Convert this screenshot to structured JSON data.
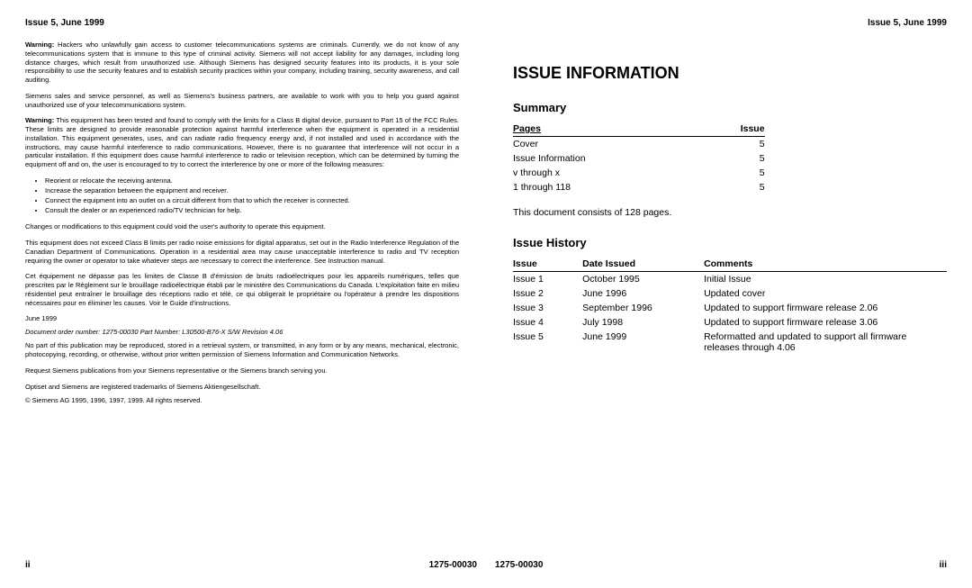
{
  "left": {
    "header": "Issue 5, June 1999",
    "p1_lead": "Warning:",
    "p1": " Hackers who unlawfully gain access to customer telecommunications systems are criminals. Currently, we do not know of any telecommunications system that is immune to this type of criminal activity. Siemens will not accept liability for any damages, including long distance charges, which result from unauthorized use. Although Siemens has designed security features into its products, it is your sole responsibility to use the security features and to establish security practices within your company, including training, security awareness, and call auditing.",
    "p2": "Siemens sales and service personnel, as well as Siemens's business partners, are available to work with you to help you guard against unauthorized use of your telecommunications system.",
    "p3_lead": "Warning:",
    "p3": " This equipment has been tested and found to comply with the limits for a Class B digital device, pursuant to Part 15 of the FCC Rules. These limits are designed to provide reasonable protection against harmful interference when the equipment is operated in a residential installation. This equipment generates, uses, and can radiate radio frequency energy and, if not installed and used in accordance with the instructions, may cause harmful interference to radio communications. However, there is no guarantee that interference will not occur in a particular installation. If this equipment does cause harmful interference to radio or television reception, which can be determined by turning the equipment off and on, the user is encouraged to try to correct the interference by one or more of the following measures:",
    "b1": "Reorient or relocate the receiving antenna.",
    "b2": "Increase the separation between the equipment and receiver.",
    "b3": "Connect the equipment into an outlet on a circuit different from that to which the receiver is connected.",
    "b4": "Consult the dealer or an experienced radio/TV technician for help.",
    "p4": "Changes or modifications to this equipment could void the user's authority to operate this equipment.",
    "p5": "This equipment does not exceed Class B limits per radio noise emissions for digital apparatus, set out in the Radio Interference Regulation of the Canadian Department of Communications. Operation in a residential area may cause unacceptable interference to radio and TV reception requiring the owner or operator to take whatever steps are necessary to correct the interference. See Instruction manual.",
    "p6": "Cet équipement ne dépasse pas les limites de Classe B d'émission de bruits radioélectriques pour les appareils numériques, telles que prescrites par le Règlement sur le brouillage radioélectrique établi par le ministère des Communications du Canada. L'exploitation faite en milieu résidentiel peut entraîner le brouillage des réceptions radio et télé, ce qui obligerait le propriétaire ou l'opérateur à prendre les dispositions nécessaires pour en éliminer les causes. Voir le Guide d'instructions.",
    "date": "June 1999",
    "docline": "Document order number: 1275-00030        Part Number:    L30500-B76-X   S/W Revision 4.06",
    "p7": "No part of this publication may be reproduced, stored in a retrieval system, or transmitted, in any form or by any means, mechanical, electronic, photocopying, recording, or otherwise, without prior written permission of Siemens Information and Communication Networks.",
    "p8": "Request Siemens publications from your Siemens representative or the Siemens branch serving you.",
    "p9a": "Optiset and Siemens are registered trademarks of Siemens Aktiengesellschaft.",
    "p9b": "© Siemens AG 1995, 1996, 1997, 1999. All rights reserved.",
    "footer_left": "ii",
    "footer_right": "1275-00030"
  },
  "right": {
    "header": "Issue 5, June 1999",
    "h1": "ISSUE INFORMATION",
    "summary_title": "Summary",
    "summary_cols": {
      "pages": "Pages",
      "issue": "Issue"
    },
    "summary_rows": [
      {
        "pages": "Cover",
        "issue": "5"
      },
      {
        "pages": "Issue Information",
        "issue": "5"
      },
      {
        "pages": "v through x",
        "issue": "5"
      },
      {
        "pages": "1 through 118",
        "issue": "5"
      }
    ],
    "note": "This document consists of 128 pages.",
    "history_title": "Issue History",
    "history_cols": {
      "issue": "Issue",
      "date": "Date Issued",
      "comments": "Comments"
    },
    "history_rows": [
      {
        "issue": "Issue 1",
        "date": "October 1995",
        "comments": "Initial Issue"
      },
      {
        "issue": "Issue 2",
        "date": "June 1996",
        "comments": "Updated cover"
      },
      {
        "issue": "Issue 3",
        "date": "September 1996",
        "comments": "Updated to support firmware release 2.06"
      },
      {
        "issue": "Issue 4",
        "date": "July 1998",
        "comments": "Updated to support firmware release 3.06"
      },
      {
        "issue": "Issue 5",
        "date": "June 1999",
        "comments": "Reformatted and updated to support all firmware releases through 4.06"
      }
    ],
    "footer_left": "1275-00030",
    "footer_right": "iii"
  }
}
